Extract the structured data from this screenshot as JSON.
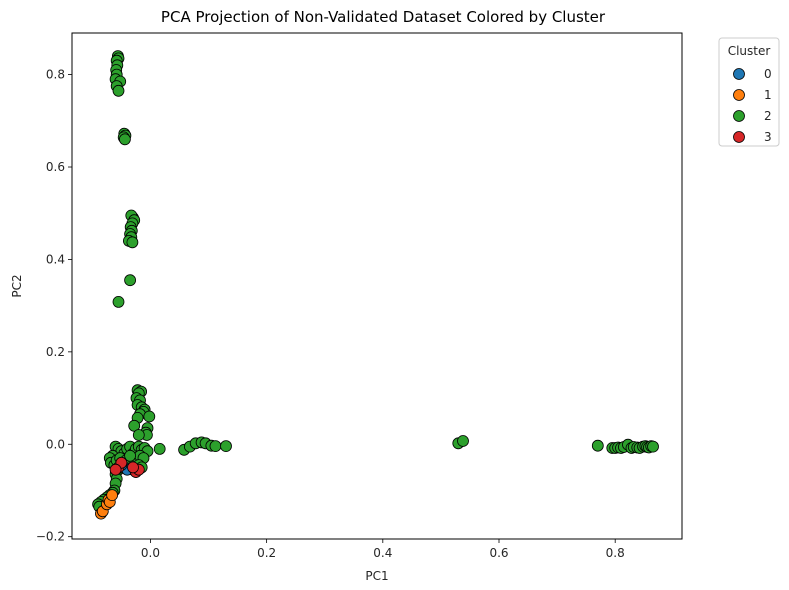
{
  "chart_data": {
    "type": "scatter",
    "title": "PCA Projection of Non-Validated Dataset Colored by Cluster",
    "xlabel": "PC1",
    "ylabel": "PC2",
    "xlim": [
      -0.135,
      0.915
    ],
    "ylim": [
      -0.205,
      0.89
    ],
    "xticks": [
      0.0,
      0.2,
      0.4,
      0.6,
      0.8
    ],
    "xtick_labels": [
      "0.0",
      "0.2",
      "0.4",
      "0.6",
      "0.8"
    ],
    "yticks": [
      -0.2,
      0.0,
      0.2,
      0.4,
      0.6,
      0.8
    ],
    "ytick_labels": [
      "−0.2",
      "0.0",
      "0.2",
      "0.4",
      "0.6",
      "0.8"
    ],
    "grid": false,
    "legend": {
      "title": "Cluster",
      "placement": "outside-top-right"
    },
    "series": [
      {
        "name": "2",
        "color": "#2ca02c",
        "points": [
          [
            -0.056,
            0.84
          ],
          [
            -0.055,
            0.835
          ],
          [
            -0.058,
            0.83
          ],
          [
            -0.057,
            0.82
          ],
          [
            -0.059,
            0.81
          ],
          [
            -0.058,
            0.8
          ],
          [
            -0.06,
            0.79
          ],
          [
            -0.052,
            0.785
          ],
          [
            -0.058,
            0.775
          ],
          [
            -0.055,
            0.765
          ],
          [
            -0.045,
            0.672
          ],
          [
            -0.043,
            0.668
          ],
          [
            -0.046,
            0.664
          ],
          [
            -0.044,
            0.66
          ],
          [
            -0.03,
            0.49
          ],
          [
            -0.033,
            0.495
          ],
          [
            -0.028,
            0.485
          ],
          [
            -0.031,
            0.478
          ],
          [
            -0.034,
            0.47
          ],
          [
            -0.032,
            0.462
          ],
          [
            -0.035,
            0.455
          ],
          [
            -0.033,
            0.448
          ],
          [
            -0.037,
            0.44
          ],
          [
            -0.031,
            0.437
          ],
          [
            -0.035,
            0.355
          ],
          [
            -0.055,
            0.308
          ],
          [
            -0.022,
            0.117
          ],
          [
            -0.016,
            0.114
          ],
          [
            -0.02,
            0.11
          ],
          [
            -0.024,
            0.1
          ],
          [
            -0.018,
            0.095
          ],
          [
            -0.022,
            0.085
          ],
          [
            -0.015,
            0.08
          ],
          [
            -0.01,
            0.075
          ],
          [
            -0.012,
            0.07
          ],
          [
            -0.018,
            0.065
          ],
          [
            -0.002,
            0.06
          ],
          [
            -0.022,
            0.057
          ],
          [
            -0.028,
            0.04
          ],
          [
            -0.005,
            0.035
          ],
          [
            -0.008,
            0.025
          ],
          [
            -0.006,
            0.02
          ],
          [
            -0.02,
            0.02
          ],
          [
            0.016,
            -0.01
          ],
          [
            0.058,
            -0.012
          ],
          [
            0.068,
            -0.005
          ],
          [
            0.078,
            0.002
          ],
          [
            0.088,
            0.004
          ],
          [
            0.095,
            0.002
          ],
          [
            0.105,
            -0.003
          ],
          [
            0.112,
            -0.004
          ],
          [
            0.13,
            -0.004
          ],
          [
            0.53,
            0.002
          ],
          [
            0.538,
            0.007
          ],
          [
            0.77,
            -0.003
          ],
          [
            0.795,
            -0.008
          ],
          [
            0.8,
            -0.008
          ],
          [
            0.805,
            -0.007
          ],
          [
            0.81,
            -0.008
          ],
          [
            0.815,
            -0.006
          ],
          [
            0.822,
            -0.001
          ],
          [
            0.828,
            -0.008
          ],
          [
            0.832,
            -0.006
          ],
          [
            0.838,
            -0.007
          ],
          [
            0.842,
            -0.008
          ],
          [
            0.848,
            -0.005
          ],
          [
            0.852,
            -0.004
          ],
          [
            0.855,
            -0.006
          ],
          [
            0.858,
            -0.007
          ],
          [
            0.862,
            -0.004
          ],
          [
            0.865,
            -0.005
          ],
          [
            -0.06,
            -0.005
          ],
          [
            -0.055,
            -0.01
          ],
          [
            -0.05,
            -0.015
          ],
          [
            -0.045,
            -0.02
          ],
          [
            -0.04,
            -0.01
          ],
          [
            -0.035,
            -0.005
          ],
          [
            -0.03,
            -0.02
          ],
          [
            -0.025,
            -0.01
          ],
          [
            -0.02,
            -0.005
          ],
          [
            -0.015,
            -0.012
          ],
          [
            -0.01,
            -0.008
          ],
          [
            -0.005,
            -0.015
          ],
          [
            -0.065,
            -0.025
          ],
          [
            -0.07,
            -0.03
          ],
          [
            -0.068,
            -0.04
          ],
          [
            -0.062,
            -0.045
          ],
          [
            -0.058,
            -0.035
          ],
          [
            -0.052,
            -0.03
          ],
          [
            -0.048,
            -0.04
          ],
          [
            -0.042,
            -0.035
          ],
          [
            -0.038,
            -0.045
          ],
          [
            -0.032,
            -0.04
          ],
          [
            -0.028,
            -0.035
          ],
          [
            -0.022,
            -0.03
          ],
          [
            -0.018,
            -0.025
          ],
          [
            -0.012,
            -0.03
          ],
          [
            -0.035,
            -0.025
          ],
          [
            -0.045,
            -0.05
          ],
          [
            -0.055,
            -0.055
          ],
          [
            -0.06,
            -0.065
          ],
          [
            -0.058,
            -0.075
          ],
          [
            -0.06,
            -0.085
          ],
          [
            -0.062,
            -0.1
          ],
          [
            -0.065,
            -0.105
          ],
          [
            -0.07,
            -0.11
          ],
          [
            -0.075,
            -0.115
          ],
          [
            -0.08,
            -0.12
          ],
          [
            -0.085,
            -0.125
          ],
          [
            -0.09,
            -0.13
          ],
          [
            -0.088,
            -0.135
          ],
          [
            -0.03,
            -0.055
          ],
          [
            -0.02,
            -0.045
          ],
          [
            -0.025,
            -0.06
          ],
          [
            -0.015,
            -0.05
          ]
        ]
      },
      {
        "name": "1",
        "color": "#ff7f0e",
        "points": [
          [
            -0.085,
            -0.15
          ],
          [
            -0.082,
            -0.145
          ],
          [
            -0.075,
            -0.13
          ],
          [
            -0.072,
            -0.12
          ],
          [
            -0.07,
            -0.125
          ],
          [
            -0.066,
            -0.11
          ]
        ]
      },
      {
        "name": "0",
        "color": "#1f77b4",
        "points": [
          [
            -0.045,
            -0.05
          ],
          [
            -0.04,
            -0.055
          ],
          [
            -0.05,
            -0.045
          ]
        ]
      },
      {
        "name": "3",
        "color": "#d62728",
        "points": [
          [
            -0.055,
            -0.05
          ],
          [
            -0.05,
            -0.04
          ],
          [
            -0.06,
            -0.055
          ],
          [
            -0.025,
            -0.06
          ],
          [
            -0.02,
            -0.055
          ],
          [
            -0.03,
            -0.05
          ]
        ]
      }
    ],
    "legend_order": [
      "0",
      "1",
      "2",
      "3"
    ],
    "legend_colors": [
      "#1f77b4",
      "#ff7f0e",
      "#2ca02c",
      "#d62728"
    ]
  }
}
